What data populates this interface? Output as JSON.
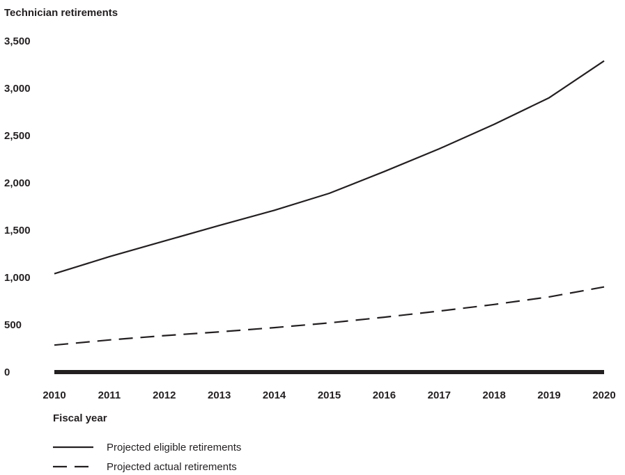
{
  "chart_data": {
    "type": "line",
    "ylabel": "Technician retirements",
    "xlabel": "Fiscal year",
    "x": [
      "2010",
      "2011",
      "2012",
      "2013",
      "2014",
      "2015",
      "2016",
      "2017",
      "2018",
      "2019",
      "2020"
    ],
    "ylim": [
      0,
      3500
    ],
    "yticks": [
      0,
      500,
      1000,
      1500,
      2000,
      2500,
      3000,
      3500
    ],
    "ytick_labels": [
      "0",
      "500",
      "1,000",
      "1,500",
      "2,000",
      "2,500",
      "3,000",
      "3,500"
    ],
    "grid": false,
    "legend_position": "bottom-left",
    "series": [
      {
        "name": "Projected eligible retirements",
        "style": "solid",
        "color": "#231f20",
        "values": [
          1040,
          1220,
          1385,
          1550,
          1710,
          1890,
          2120,
          2360,
          2620,
          2900,
          3290
        ]
      },
      {
        "name": "Projected actual retirements",
        "style": "dashed",
        "color": "#231f20",
        "values": [
          285,
          340,
          385,
          425,
          470,
          520,
          580,
          645,
          715,
          795,
          900
        ]
      }
    ]
  }
}
